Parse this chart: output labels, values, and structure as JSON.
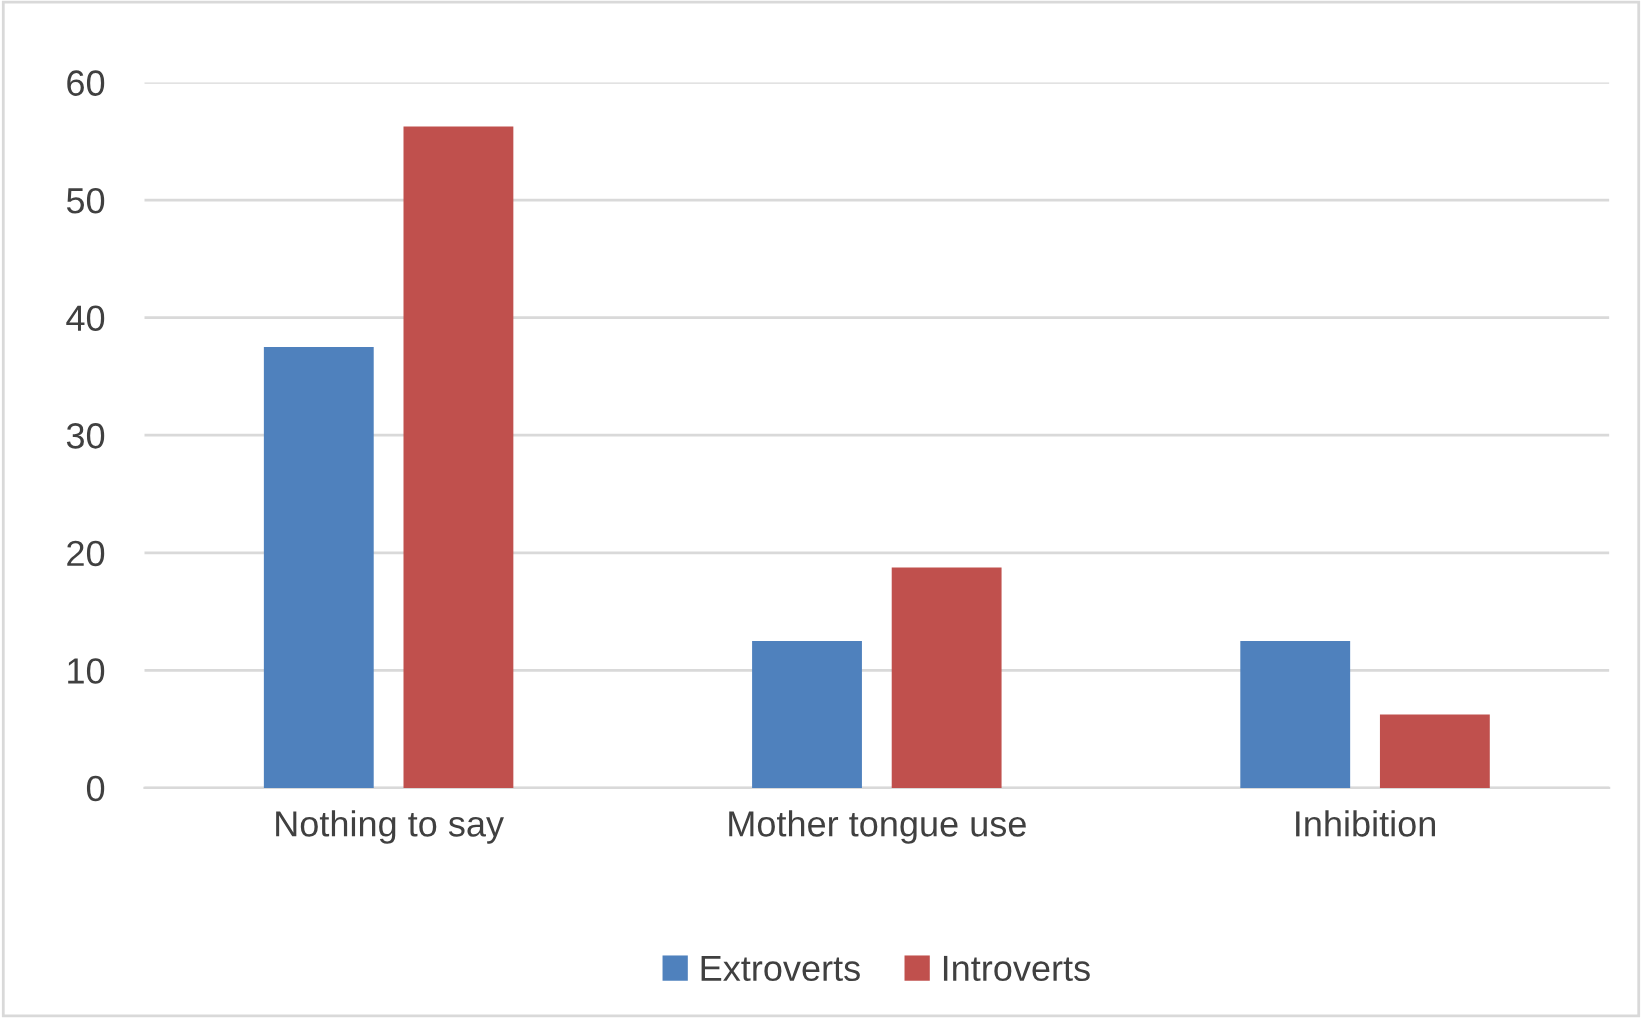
{
  "chart_data": {
    "type": "bar",
    "categories": [
      "Nothing to say",
      "Mother tongue use",
      "Inhibition"
    ],
    "series": [
      {
        "name": "Extroverts",
        "color": "#4f81bd",
        "values": [
          37.5,
          12.5,
          12.5
        ]
      },
      {
        "name": "Introverts",
        "color": "#c0504d",
        "values": [
          56.25,
          18.75,
          6.25
        ]
      }
    ],
    "ylim": [
      0,
      60
    ],
    "yticks": [
      0,
      10,
      20,
      30,
      40,
      50,
      60
    ],
    "grid": "y",
    "legend": "bottom"
  }
}
